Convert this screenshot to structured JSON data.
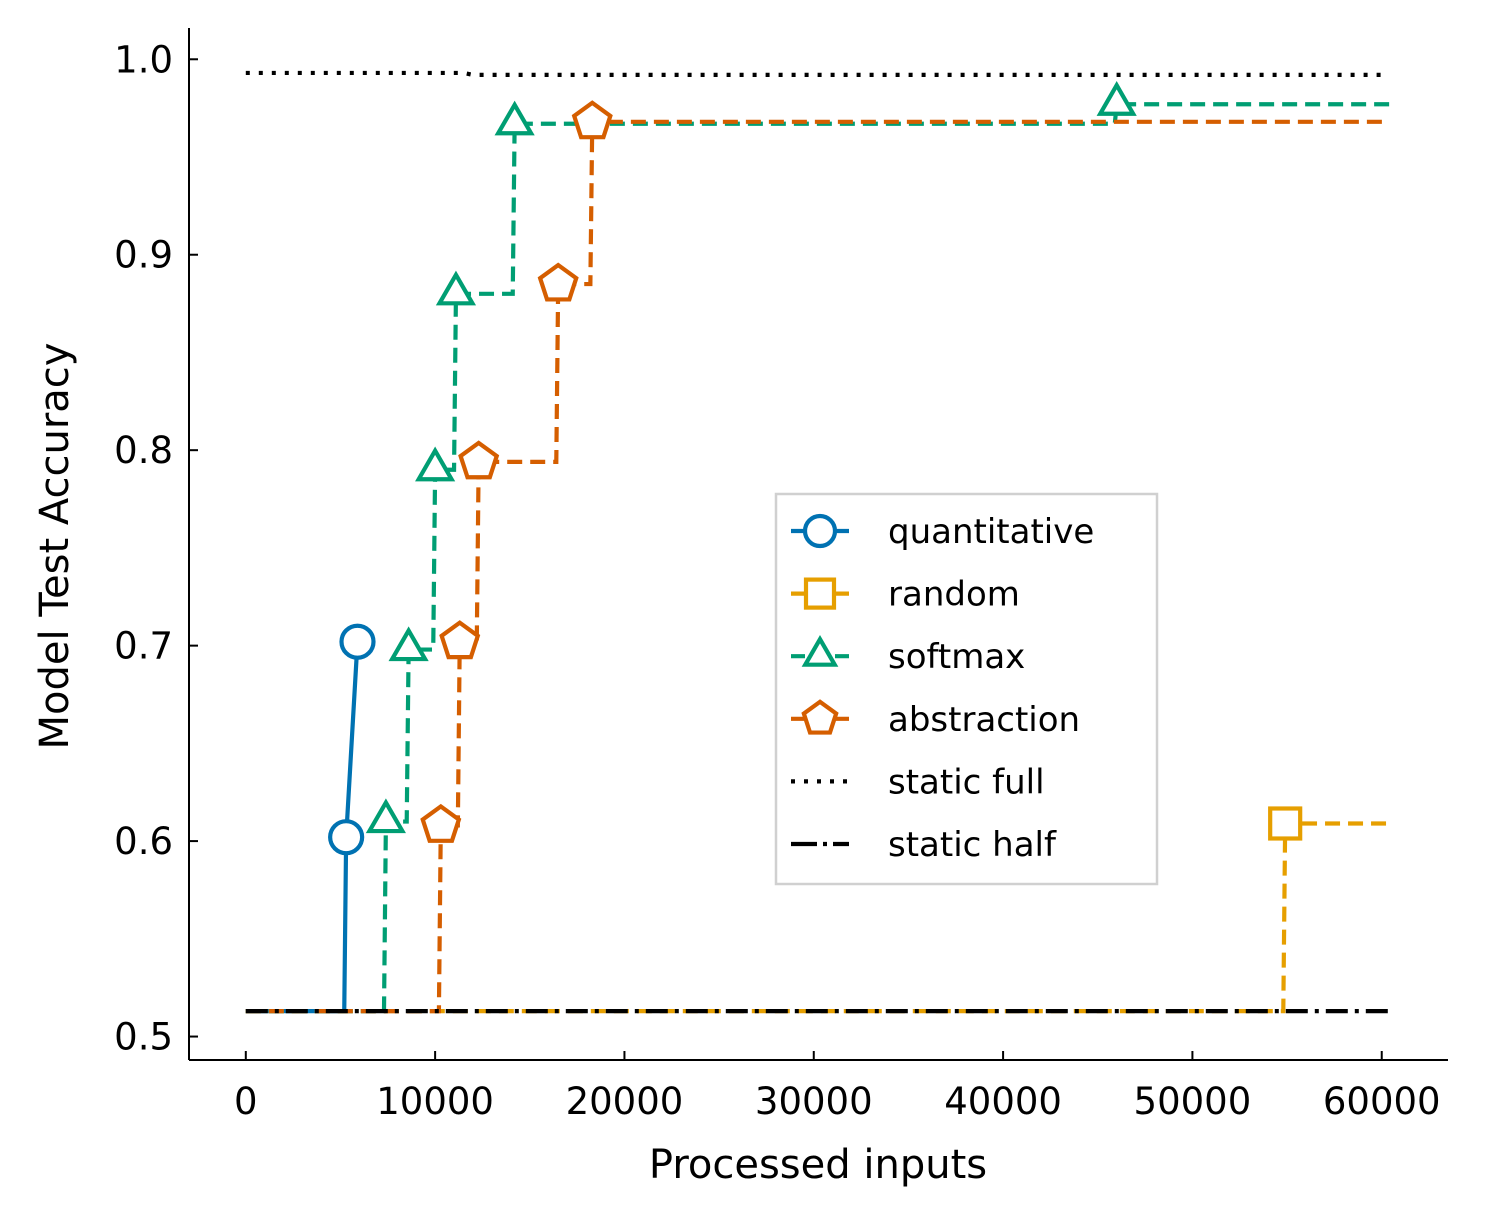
{
  "chart_data": {
    "type": "line",
    "xlabel": "Processed inputs",
    "ylabel": "Model Test Accuracy",
    "xlim": [
      -3000,
      63500
    ],
    "ylim": [
      0.488,
      1.016
    ],
    "xticks": [
      0,
      10000,
      20000,
      30000,
      40000,
      50000,
      60000
    ],
    "yticks": [
      0.5,
      0.6,
      0.7,
      0.8,
      0.9,
      1.0
    ],
    "xtick_labels": [
      "0",
      "10000",
      "20000",
      "30000",
      "40000",
      "50000",
      "60000"
    ],
    "ytick_labels": [
      "0.5",
      "0.6",
      "0.7",
      "0.8",
      "0.9",
      "1.0"
    ],
    "grid": false,
    "legend_position": "center-right",
    "series": [
      {
        "name": "quantitative",
        "color": "#0072b2",
        "dash": "solid",
        "marker": "circle",
        "points": [
          [
            0,
            0.513
          ],
          [
            5200,
            0.513
          ],
          [
            5300,
            0.602
          ],
          [
            5900,
            0.702
          ],
          [
            6000,
            0.702
          ]
        ],
        "markers": [
          [
            5300,
            0.602
          ],
          [
            5900,
            0.702
          ]
        ]
      },
      {
        "name": "random",
        "color": "#e69f00",
        "dash": "dashed",
        "marker": "square",
        "points": [
          [
            0,
            0.513
          ],
          [
            54800,
            0.513
          ],
          [
            54900,
            0.609
          ],
          [
            60400,
            0.609
          ]
        ],
        "markers": [
          [
            54900,
            0.609
          ]
        ]
      },
      {
        "name": "softmax",
        "color": "#009e73",
        "dash": "dashed",
        "marker": "triangle",
        "points": [
          [
            0,
            0.513
          ],
          [
            7300,
            0.513
          ],
          [
            7400,
            0.61
          ],
          [
            8500,
            0.61
          ],
          [
            8600,
            0.698
          ],
          [
            9900,
            0.698
          ],
          [
            10000,
            0.79
          ],
          [
            11000,
            0.79
          ],
          [
            11100,
            0.88
          ],
          [
            14100,
            0.88
          ],
          [
            14200,
            0.967
          ],
          [
            45900,
            0.967
          ],
          [
            46000,
            0.977
          ],
          [
            60400,
            0.977
          ]
        ],
        "markers": [
          [
            7400,
            0.61
          ],
          [
            8600,
            0.698
          ],
          [
            10000,
            0.79
          ],
          [
            11100,
            0.88
          ],
          [
            14200,
            0.967
          ],
          [
            46000,
            0.977
          ]
        ]
      },
      {
        "name": "abstraction",
        "color": "#d55e00",
        "dash": "dashed",
        "marker": "pentagon",
        "points": [
          [
            0,
            0.513
          ],
          [
            10200,
            0.513
          ],
          [
            10300,
            0.608
          ],
          [
            11200,
            0.608
          ],
          [
            11300,
            0.702
          ],
          [
            12200,
            0.702
          ],
          [
            12300,
            0.794
          ],
          [
            16400,
            0.794
          ],
          [
            16500,
            0.885
          ],
          [
            18200,
            0.885
          ],
          [
            18300,
            0.968
          ],
          [
            60400,
            0.968
          ]
        ],
        "markers": [
          [
            10300,
            0.608
          ],
          [
            11300,
            0.702
          ],
          [
            12300,
            0.794
          ],
          [
            16500,
            0.885
          ],
          [
            18300,
            0.968
          ]
        ]
      },
      {
        "name": "static full",
        "color": "#000000",
        "dash": "dotted",
        "marker": "none",
        "points": [
          [
            0,
            0.993
          ],
          [
            11500,
            0.993
          ],
          [
            12000,
            0.992
          ],
          [
            60400,
            0.992
          ]
        ],
        "markers": []
      },
      {
        "name": "static half",
        "color": "#000000",
        "dash": "dashdot",
        "marker": "none",
        "points": [
          [
            0,
            0.513
          ],
          [
            60400,
            0.513
          ]
        ],
        "markers": []
      }
    ]
  }
}
